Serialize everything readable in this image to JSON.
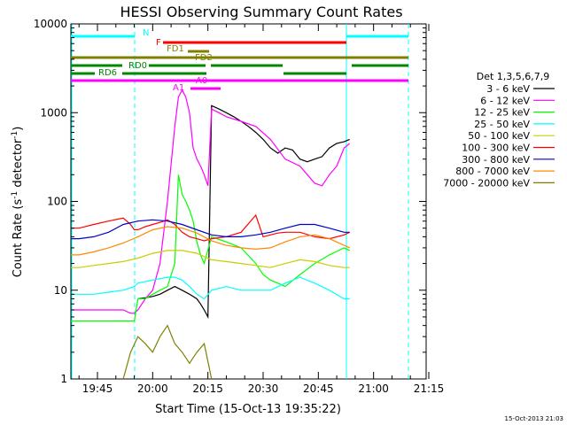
{
  "chart_data": {
    "type": "line",
    "title": "HESSI Observing Summary Count Rates",
    "xlabel": "Start Time (15-Oct-13 19:35:22)",
    "ylabel_main": "Count Rate (s",
    "ylabel_sup": "-1",
    "ylabel_mid": " detector",
    "ylabel_end": ")",
    "yscale": "log",
    "ylim": [
      1,
      10000
    ],
    "xlim_minutes": [
      35.37,
      100
    ],
    "x_ticks": [
      {
        "label": "19:45",
        "min": 45
      },
      {
        "label": "20:00",
        "min": 60
      },
      {
        "label": "20:15",
        "min": 75
      },
      {
        "label": "20:30",
        "min": 90
      },
      {
        "label": "20:45",
        "min": 105
      },
      {
        "label": "21:00",
        "min": 120
      },
      {
        "label": "21:15",
        "min": 135
      }
    ],
    "y_ticks": [
      {
        "label": "1",
        "value": 1
      },
      {
        "label": "10",
        "value": 10
      },
      {
        "label": "100",
        "value": 100
      },
      {
        "label": "1000",
        "value": 1000
      },
      {
        "label": "10000",
        "value": 10000
      }
    ],
    "legend_title": "Det 1,3,5,6,7,9",
    "timestamp": "15-Oct-2013 21:03",
    "series": [
      {
        "name": "3 - 6 keV",
        "color": "#000000",
        "x": [
          56,
          58,
          60,
          62,
          64,
          66,
          68,
          70,
          72,
          73,
          74,
          75,
          76,
          78,
          80,
          82,
          84,
          86,
          88,
          90,
          92,
          94,
          96,
          98,
          100,
          102,
          104,
          106,
          108,
          110,
          112,
          113.5
        ],
        "y": [
          8,
          8.2,
          8.5,
          9,
          10,
          11,
          10,
          9,
          8,
          7,
          6,
          5,
          1200,
          1100,
          1000,
          900,
          800,
          700,
          600,
          500,
          400,
          350,
          400,
          380,
          300,
          280,
          300,
          320,
          400,
          450,
          470,
          500
        ]
      },
      {
        "name": "6 - 12 keV",
        "color": "#ff00ff",
        "x": [
          36,
          40,
          44,
          48,
          52,
          54,
          55,
          56,
          58,
          60,
          62,
          64,
          66,
          67,
          68,
          69,
          70,
          71,
          72,
          73,
          74,
          75,
          76,
          78,
          80,
          84,
          88,
          92,
          96,
          100,
          102,
          104,
          106,
          108,
          110,
          112,
          113.5
        ],
        "y": [
          6,
          6,
          6,
          6,
          6,
          5.5,
          5.5,
          6,
          8,
          10,
          20,
          100,
          700,
          1500,
          1800,
          1500,
          1000,
          400,
          300,
          250,
          200,
          150,
          1100,
          1000,
          900,
          800,
          700,
          500,
          300,
          250,
          200,
          160,
          150,
          200,
          250,
          400,
          450
        ]
      },
      {
        "name": "12 - 25 keV",
        "color": "#00ff00",
        "x": [
          36,
          40,
          44,
          48,
          52,
          55,
          56,
          58,
          60,
          62,
          64,
          66,
          67,
          68,
          69,
          70,
          71,
          72,
          73,
          74,
          76,
          80,
          84,
          88,
          90,
          92,
          94,
          96,
          100,
          104,
          108,
          112,
          113.5
        ],
        "y": [
          4.5,
          4.5,
          4.5,
          4.5,
          4.5,
          4.5,
          8,
          8,
          9,
          10,
          11,
          20,
          200,
          120,
          100,
          80,
          60,
          35,
          25,
          20,
          40,
          35,
          30,
          20,
          15,
          13,
          12,
          11,
          15,
          20,
          25,
          30,
          28
        ]
      },
      {
        "name": "25 - 50 keV",
        "color": "#00ffff",
        "x": [
          36,
          40,
          44,
          48,
          52,
          55,
          56,
          60,
          64,
          66,
          68,
          70,
          72,
          74,
          76,
          80,
          84,
          88,
          92,
          96,
          100,
          104,
          108,
          112,
          113.5
        ],
        "y": [
          9,
          9,
          9,
          9.5,
          10,
          11,
          12,
          13,
          14,
          14,
          13,
          11,
          9,
          8,
          10,
          11,
          10,
          10,
          10,
          12,
          14,
          12,
          10,
          8,
          8
        ]
      },
      {
        "name": "50 - 100 keV",
        "color": "#cccc00",
        "x": [
          36,
          40,
          44,
          48,
          52,
          56,
          60,
          64,
          68,
          72,
          76,
          80,
          84,
          88,
          92,
          96,
          100,
          104,
          108,
          112,
          113.5
        ],
        "y": [
          18,
          18,
          19,
          20,
          21,
          23,
          26,
          28,
          28,
          26,
          22,
          21,
          20,
          19,
          18,
          20,
          22,
          21,
          19,
          18,
          18
        ]
      },
      {
        "name": "100 - 300 keV",
        "color": "#ff0000",
        "x": [
          36,
          40,
          44,
          48,
          52,
          54,
          55,
          56,
          58,
          60,
          62,
          64,
          66,
          68,
          70,
          72,
          74,
          76,
          80,
          84,
          88,
          90,
          92,
          94,
          96,
          100,
          104,
          108,
          112,
          113.5
        ],
        "y": [
          50,
          50,
          55,
          60,
          65,
          55,
          48,
          48,
          52,
          55,
          58,
          62,
          55,
          45,
          40,
          38,
          36,
          38,
          40,
          45,
          70,
          40,
          42,
          44,
          45,
          45,
          40,
          38,
          42,
          45
        ]
      },
      {
        "name": "300 - 800 keV",
        "color": "#0000cc",
        "x": [
          36,
          40,
          44,
          48,
          52,
          56,
          60,
          64,
          68,
          72,
          76,
          80,
          84,
          88,
          92,
          96,
          100,
          104,
          108,
          112,
          113.5
        ],
        "y": [
          38,
          38,
          40,
          45,
          55,
          60,
          62,
          60,
          55,
          48,
          42,
          40,
          40,
          42,
          45,
          50,
          55,
          55,
          50,
          45,
          45
        ]
      },
      {
        "name": "800 - 7000 keV",
        "color": "#ff8800",
        "x": [
          36,
          40,
          44,
          48,
          52,
          56,
          60,
          64,
          68,
          72,
          76,
          80,
          84,
          88,
          92,
          96,
          100,
          104,
          108,
          112,
          113.5
        ],
        "y": [
          25,
          25,
          27,
          30,
          34,
          40,
          48,
          52,
          50,
          44,
          36,
          32,
          30,
          29,
          30,
          35,
          40,
          42,
          38,
          32,
          30
        ]
      },
      {
        "name": "7000 - 20000 keV",
        "color": "#808000",
        "x": [
          52,
          54,
          56,
          58,
          60,
          62,
          64,
          66,
          68,
          70,
          72,
          74,
          76
        ],
        "y": [
          1,
          2,
          3,
          2.5,
          2,
          3,
          4,
          2.5,
          2,
          1.5,
          2,
          2.5,
          1
        ]
      }
    ],
    "flag_bars": [
      {
        "name": "N",
        "color": "#00ffff"
      },
      {
        "name": "F",
        "color": "#ff0000"
      },
      {
        "name": "FD1",
        "color": "#808000"
      },
      {
        "name": "FD2",
        "color": "#808000"
      },
      {
        "name": "RD0",
        "color": "#008800"
      },
      {
        "name": "RD6",
        "color": "#008800"
      },
      {
        "name": "A1",
        "color": "#ff00ff"
      },
      {
        "name": "A0",
        "color": "#ff00ff"
      }
    ]
  }
}
